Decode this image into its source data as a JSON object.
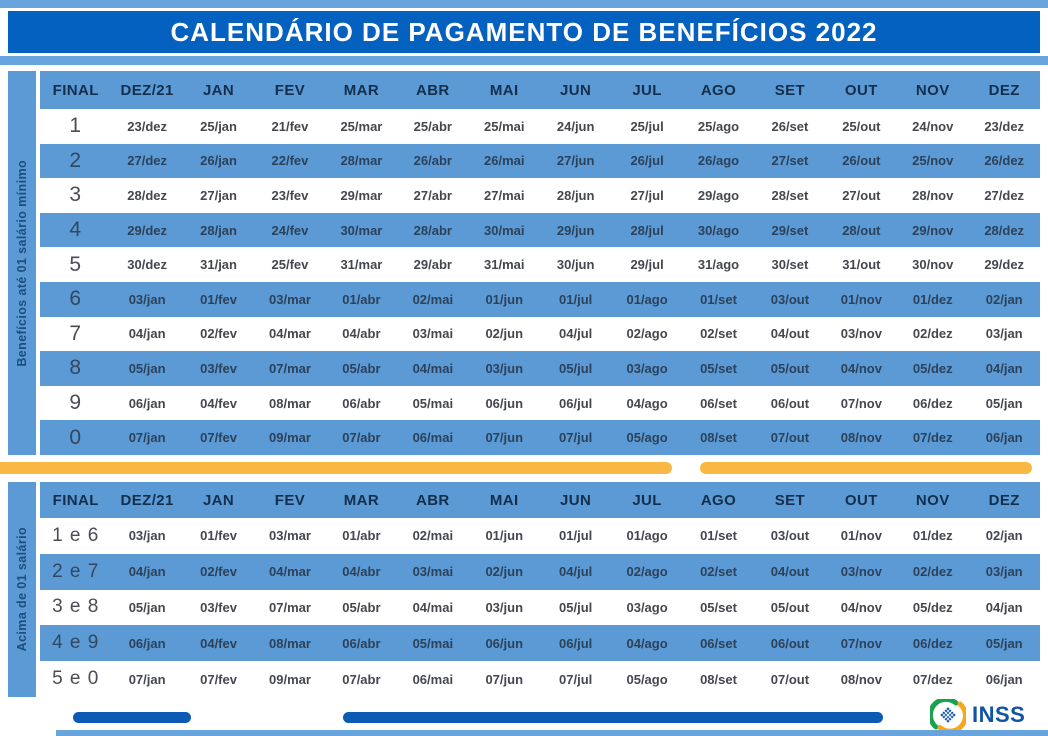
{
  "title": "CALENDÁRIO DE PAGAMENTO DE BENEFÍCIOS 2022",
  "columns": [
    "FINAL",
    "DEZ/21",
    "JAN",
    "FEV",
    "MAR",
    "ABR",
    "MAI",
    "JUN",
    "JUL",
    "AGO",
    "SET",
    "OUT",
    "NOV",
    "DEZ"
  ],
  "table1": {
    "side_label": "Benefícios até 01 salário mínimo",
    "rows": [
      {
        "final": "1",
        "dates": [
          "23/dez",
          "25/jan",
          "21/fev",
          "25/mar",
          "25/abr",
          "25/mai",
          "24/jun",
          "25/jul",
          "25/ago",
          "26/set",
          "25/out",
          "24/nov",
          "23/dez"
        ]
      },
      {
        "final": "2",
        "dates": [
          "27/dez",
          "26/jan",
          "22/fev",
          "28/mar",
          "26/abr",
          "26/mai",
          "27/jun",
          "26/jul",
          "26/ago",
          "27/set",
          "26/out",
          "25/nov",
          "26/dez"
        ]
      },
      {
        "final": "3",
        "dates": [
          "28/dez",
          "27/jan",
          "23/fev",
          "29/mar",
          "27/abr",
          "27/mai",
          "28/jun",
          "27/jul",
          "29/ago",
          "28/set",
          "27/out",
          "28/nov",
          "27/dez"
        ]
      },
      {
        "final": "4",
        "dates": [
          "29/dez",
          "28/jan",
          "24/fev",
          "30/mar",
          "28/abr",
          "30/mai",
          "29/jun",
          "28/jul",
          "30/ago",
          "29/set",
          "28/out",
          "29/nov",
          "28/dez"
        ]
      },
      {
        "final": "5",
        "dates": [
          "30/dez",
          "31/jan",
          "25/fev",
          "31/mar",
          "29/abr",
          "31/mai",
          "30/jun",
          "29/jul",
          "31/ago",
          "30/set",
          "31/out",
          "30/nov",
          "29/dez"
        ]
      },
      {
        "final": "6",
        "dates": [
          "03/jan",
          "01/fev",
          "03/mar",
          "01/abr",
          "02/mai",
          "01/jun",
          "01/jul",
          "01/ago",
          "01/set",
          "03/out",
          "01/nov",
          "01/dez",
          "02/jan"
        ]
      },
      {
        "final": "7",
        "dates": [
          "04/jan",
          "02/fev",
          "04/mar",
          "04/abr",
          "03/mai",
          "02/jun",
          "04/jul",
          "02/ago",
          "02/set",
          "04/out",
          "03/nov",
          "02/dez",
          "03/jan"
        ]
      },
      {
        "final": "8",
        "dates": [
          "05/jan",
          "03/fev",
          "07/mar",
          "05/abr",
          "04/mai",
          "03/jun",
          "05/jul",
          "03/ago",
          "05/set",
          "05/out",
          "04/nov",
          "05/dez",
          "04/jan"
        ]
      },
      {
        "final": "9",
        "dates": [
          "06/jan",
          "04/fev",
          "08/mar",
          "06/abr",
          "05/mai",
          "06/jun",
          "06/jul",
          "04/ago",
          "06/set",
          "06/out",
          "07/nov",
          "06/dez",
          "05/jan"
        ]
      },
      {
        "final": "0",
        "dates": [
          "07/jan",
          "07/fev",
          "09/mar",
          "07/abr",
          "06/mai",
          "07/jun",
          "07/jul",
          "05/ago",
          "08/set",
          "07/out",
          "08/nov",
          "07/dez",
          "06/jan"
        ]
      }
    ]
  },
  "table2": {
    "side_label": "Acima de 01 salário",
    "rows": [
      {
        "final": "1 e 6",
        "dates": [
          "03/jan",
          "01/fev",
          "03/mar",
          "01/abr",
          "02/mai",
          "01/jun",
          "01/jul",
          "01/ago",
          "01/set",
          "03/out",
          "01/nov",
          "01/dez",
          "02/jan"
        ]
      },
      {
        "final": "2 e 7",
        "dates": [
          "04/jan",
          "02/fev",
          "04/mar",
          "04/abr",
          "03/mai",
          "02/jun",
          "04/jul",
          "02/ago",
          "02/set",
          "04/out",
          "03/nov",
          "02/dez",
          "03/jan"
        ]
      },
      {
        "final": "3 e 8",
        "dates": [
          "05/jan",
          "03/fev",
          "07/mar",
          "05/abr",
          "04/mai",
          "03/jun",
          "05/jul",
          "03/ago",
          "05/set",
          "05/out",
          "04/nov",
          "05/dez",
          "04/jan"
        ]
      },
      {
        "final": "4 e 9",
        "dates": [
          "06/jan",
          "04/fev",
          "08/mar",
          "06/abr",
          "05/mai",
          "06/jun",
          "06/jul",
          "04/ago",
          "06/set",
          "06/out",
          "07/nov",
          "06/dez",
          "05/jan"
        ]
      },
      {
        "final": "5 e 0",
        "dates": [
          "07/jan",
          "07/fev",
          "09/mar",
          "07/abr",
          "06/mai",
          "07/jun",
          "07/jul",
          "05/ago",
          "08/set",
          "07/out",
          "08/nov",
          "07/dez",
          "06/jan"
        ]
      }
    ]
  },
  "footer": {
    "logo_text": "INSS"
  },
  "colors": {
    "dark_blue": "#0561bf",
    "light_blue": "#68a5de",
    "row_blue": "#5b9ad5",
    "yellow": "#f9b843",
    "bar_blue": "#0b5ab4",
    "logo_green": "#18a24f",
    "logo_orange": "#f5a81c",
    "logo_blue": "#1558a6"
  }
}
